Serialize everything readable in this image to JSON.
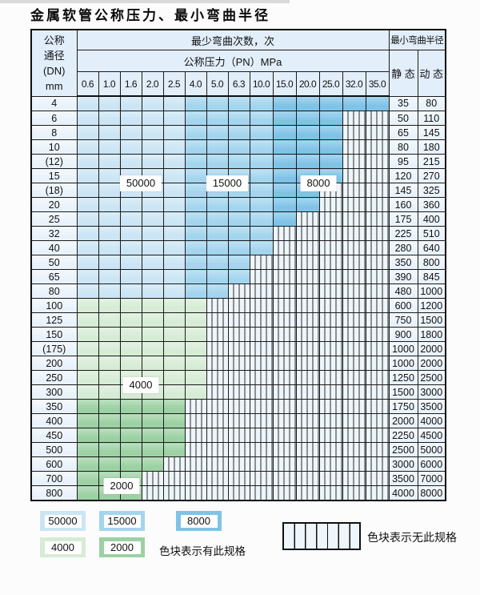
{
  "title": "金属软管公称压力、最小弯曲半径",
  "colors": {
    "band_50000": "#cbe5f4",
    "band_15000": "#a3d5ee",
    "band_8000": "#7fc3e7",
    "band_4000": "#d6ecd5",
    "band_2000": "#9cd1a3",
    "hatch_bg": "#eef5fb",
    "label_col_bg": "#e9f2fb",
    "header_bg": "#e2eefa"
  },
  "table": {
    "corner": {
      "line1": "公称",
      "line2": "通径",
      "line3": "(DN)",
      "line4": "mm"
    },
    "bend_cycles_header": "最少弯曲次数，次",
    "pressure_header": "公称压力（PN）MPa",
    "radius_header": "最小弯曲半径",
    "static_label": "静 态",
    "dynamic_label": "动 态",
    "pressure_columns": [
      "0.6",
      "1.0",
      "1.6",
      "2.0",
      "2.5",
      "4.0",
      "5.0",
      "6.3",
      "10.0",
      "15.0",
      "20.0",
      "25.0",
      "32.0",
      "35.0"
    ],
    "band_rule": {
      "blue_light_max_col": 5,
      "blue_medium_max_col": 9,
      "blue_dark_max_col": 14
    },
    "rows": [
      {
        "dn": "4",
        "region": "blue",
        "max_col": 14,
        "static": "35",
        "dynamic": "80"
      },
      {
        "dn": "6",
        "region": "blue",
        "max_col": 12,
        "static": "50",
        "dynamic": "110"
      },
      {
        "dn": "8",
        "region": "blue",
        "max_col": 12,
        "static": "65",
        "dynamic": "145"
      },
      {
        "dn": "10",
        "region": "blue",
        "max_col": 12,
        "static": "80",
        "dynamic": "180"
      },
      {
        "dn": "(12)",
        "region": "blue",
        "max_col": 12,
        "static": "95",
        "dynamic": "215"
      },
      {
        "dn": "15",
        "region": "blue",
        "max_col": 12,
        "static": "120",
        "dynamic": "270"
      },
      {
        "dn": "(18)",
        "region": "blue",
        "max_col": 11,
        "static": "145",
        "dynamic": "325"
      },
      {
        "dn": "20",
        "region": "blue",
        "max_col": 11,
        "static": "160",
        "dynamic": "360"
      },
      {
        "dn": "25",
        "region": "blue",
        "max_col": 10,
        "static": "175",
        "dynamic": "400"
      },
      {
        "dn": "32",
        "region": "blue",
        "max_col": 9,
        "static": "225",
        "dynamic": "510"
      },
      {
        "dn": "40",
        "region": "blue",
        "max_col": 9,
        "static": "280",
        "dynamic": "640"
      },
      {
        "dn": "50",
        "region": "blue",
        "max_col": 8,
        "static": "350",
        "dynamic": "800"
      },
      {
        "dn": "65",
        "region": "blue",
        "max_col": 8,
        "static": "390",
        "dynamic": "845"
      },
      {
        "dn": "80",
        "region": "blue",
        "max_col": 7,
        "static": "480",
        "dynamic": "1000"
      },
      {
        "dn": "100",
        "region": "green_light",
        "max_col": 6,
        "static": "600",
        "dynamic": "1200"
      },
      {
        "dn": "125",
        "region": "green_light",
        "max_col": 6,
        "static": "750",
        "dynamic": "1500"
      },
      {
        "dn": "150",
        "region": "green_light",
        "max_col": 6,
        "static": "900",
        "dynamic": "1800"
      },
      {
        "dn": "(175)",
        "region": "green_light",
        "max_col": 6,
        "static": "1000",
        "dynamic": "2000"
      },
      {
        "dn": "200",
        "region": "green_light",
        "max_col": 6,
        "static": "1000",
        "dynamic": "2000"
      },
      {
        "dn": "250",
        "region": "green_light",
        "max_col": 6,
        "static": "1250",
        "dynamic": "2500"
      },
      {
        "dn": "300",
        "region": "green_light",
        "max_col": 6,
        "static": "1500",
        "dynamic": "3000"
      },
      {
        "dn": "350",
        "region": "green_dark",
        "max_col": 5,
        "static": "1750",
        "dynamic": "3500"
      },
      {
        "dn": "400",
        "region": "green_dark",
        "max_col": 5,
        "static": "2000",
        "dynamic": "4000"
      },
      {
        "dn": "450",
        "region": "green_dark",
        "max_col": 5,
        "static": "2250",
        "dynamic": "4500"
      },
      {
        "dn": "500",
        "region": "green_dark",
        "max_col": 5,
        "static": "2500",
        "dynamic": "5000"
      },
      {
        "dn": "600",
        "region": "green_dark",
        "max_col": 4,
        "static": "3000",
        "dynamic": "6000"
      },
      {
        "dn": "700",
        "region": "green_dark",
        "max_col": 3,
        "static": "3500",
        "dynamic": "7000"
      },
      {
        "dn": "800",
        "region": "green_dark",
        "max_col": 3,
        "static": "4000",
        "dynamic": "8000"
      }
    ]
  },
  "overlay_labels": [
    {
      "text": "50000"
    },
    {
      "text": "15000"
    },
    {
      "text": "8000"
    },
    {
      "text": "4000"
    },
    {
      "text": "2000"
    }
  ],
  "legend": {
    "swatches": [
      {
        "text": "50000"
      },
      {
        "text": "15000"
      },
      {
        "text": "8000"
      },
      {
        "text": "4000"
      },
      {
        "text": "2000"
      }
    ],
    "has_spec_note": "色块表示有此规格",
    "no_spec_note": "色块表示无此规格"
  }
}
